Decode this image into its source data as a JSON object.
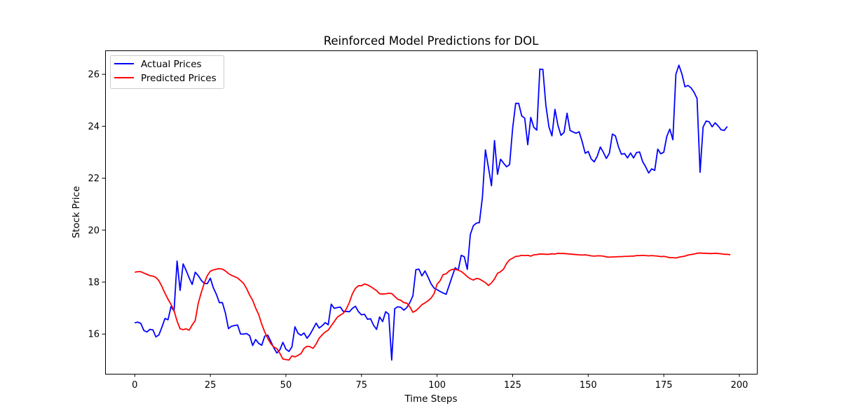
{
  "chart_data": {
    "type": "line",
    "title": "Reinforced Model Predictions for DOL",
    "xlabel": "Time Steps",
    "ylabel": "Stock Price",
    "xlim": [
      -9.8,
      205.8
    ],
    "ylim": [
      14.47,
      26.92
    ],
    "xticks": [
      0,
      25,
      50,
      75,
      100,
      125,
      150,
      175,
      200
    ],
    "yticks": [
      16,
      18,
      20,
      22,
      24,
      26
    ],
    "grid": false,
    "legend_position": "top-left",
    "series": [
      {
        "name": "Actual Prices",
        "color": "#0000ff",
        "values": [
          16.43,
          16.46,
          16.41,
          16.14,
          16.08,
          16.18,
          16.16,
          15.89,
          15.97,
          16.27,
          16.6,
          16.55,
          17.06,
          16.88,
          18.81,
          17.68,
          18.7,
          18.45,
          18.16,
          17.91,
          18.38,
          18.25,
          18.07,
          17.95,
          17.94,
          18.15,
          17.78,
          17.53,
          17.21,
          17.21,
          16.8,
          16.21,
          16.3,
          16.33,
          16.35,
          16.0,
          16.0,
          16.02,
          15.94,
          15.56,
          15.79,
          15.64,
          15.57,
          15.92,
          15.96,
          15.72,
          15.47,
          15.27,
          15.39,
          15.68,
          15.42,
          15.33,
          15.51,
          16.28,
          16.03,
          15.95,
          16.04,
          15.84,
          15.99,
          16.2,
          16.42,
          16.23,
          16.32,
          16.44,
          16.36,
          17.15,
          16.99,
          17.02,
          17.04,
          16.87,
          16.87,
          16.86,
          16.99,
          17.07,
          16.86,
          16.74,
          16.76,
          16.57,
          16.59,
          16.34,
          16.18,
          16.66,
          16.48,
          16.86,
          16.77,
          15.0,
          16.98,
          17.05,
          17.03,
          16.92,
          17.02,
          17.21,
          17.47,
          18.48,
          18.5,
          18.24,
          18.43,
          18.2,
          17.94,
          17.77,
          17.71,
          17.64,
          17.58,
          17.53,
          17.87,
          18.22,
          18.55,
          18.46,
          19.03,
          18.98,
          18.49,
          19.83,
          20.17,
          20.27,
          20.29,
          21.26,
          23.09,
          22.41,
          21.71,
          23.45,
          22.15,
          22.73,
          22.58,
          22.44,
          22.53,
          23.92,
          24.88,
          24.88,
          24.4,
          24.31,
          23.29,
          24.34,
          23.96,
          23.85,
          26.2,
          26.19,
          24.8,
          23.98,
          23.63,
          24.65,
          24.03,
          23.65,
          23.76,
          24.5,
          23.84,
          23.78,
          23.73,
          23.79,
          23.41,
          22.96,
          23.03,
          22.74,
          22.63,
          22.85,
          23.2,
          23.0,
          22.76,
          22.96,
          23.7,
          23.63,
          23.21,
          22.92,
          22.95,
          22.78,
          22.97,
          22.78,
          22.99,
          23.01,
          22.64,
          22.44,
          22.2,
          22.36,
          22.3,
          23.12,
          22.94,
          23.0,
          23.61,
          23.89,
          23.48,
          26.0,
          26.35,
          26.01,
          25.52,
          25.57,
          25.48,
          25.31,
          25.07,
          22.23,
          23.97,
          24.2,
          24.17,
          23.98,
          24.13,
          24.01,
          23.86,
          23.84,
          23.99
        ]
      },
      {
        "name": "Predicted Prices",
        "color": "#ff0000",
        "values": [
          18.38,
          18.4,
          18.4,
          18.35,
          18.3,
          18.25,
          18.23,
          18.18,
          18.05,
          17.83,
          17.57,
          17.34,
          17.14,
          16.9,
          16.5,
          16.2,
          16.17,
          16.2,
          16.15,
          16.35,
          16.52,
          17.18,
          17.6,
          17.96,
          18.25,
          18.42,
          18.47,
          18.5,
          18.52,
          18.5,
          18.43,
          18.33,
          18.26,
          18.21,
          18.16,
          18.06,
          17.95,
          17.75,
          17.5,
          17.3,
          17.0,
          16.75,
          16.38,
          16.08,
          15.83,
          15.63,
          15.5,
          15.44,
          15.26,
          15.04,
          15.02,
          15.0,
          15.16,
          15.12,
          15.18,
          15.25,
          15.45,
          15.53,
          15.51,
          15.45,
          15.62,
          15.84,
          15.97,
          16.08,
          16.15,
          16.32,
          16.48,
          16.65,
          16.73,
          16.8,
          16.97,
          17.22,
          17.55,
          17.76,
          17.86,
          17.86,
          17.93,
          17.89,
          17.83,
          17.75,
          17.67,
          17.55,
          17.54,
          17.55,
          17.57,
          17.56,
          17.45,
          17.34,
          17.3,
          17.21,
          17.19,
          17.05,
          16.84,
          16.9,
          17.01,
          17.13,
          17.2,
          17.28,
          17.38,
          17.55,
          17.92,
          18.05,
          18.29,
          18.32,
          18.43,
          18.49,
          18.49,
          18.46,
          18.41,
          18.32,
          18.21,
          18.13,
          18.08,
          18.14,
          18.12,
          18.05,
          17.98,
          17.87,
          17.97,
          18.12,
          18.34,
          18.4,
          18.5,
          18.72,
          18.86,
          18.92,
          18.99,
          19.0,
          19.03,
          19.02,
          19.03,
          19.0,
          19.05,
          19.06,
          19.08,
          19.08,
          19.07,
          19.07,
          19.09,
          19.08,
          19.11,
          19.1,
          19.1,
          19.09,
          19.08,
          19.07,
          19.06,
          19.05,
          19.04,
          19.05,
          19.03,
          19.01,
          19.0,
          19.01,
          19.01,
          19.0,
          18.97,
          18.96,
          18.97,
          18.97,
          18.98,
          18.98,
          18.99,
          18.99,
          19.0,
          19.0,
          19.02,
          19.02,
          19.03,
          19.02,
          19.01,
          19.02,
          19.01,
          19.0,
          18.98,
          18.99,
          18.97,
          18.94,
          18.94,
          18.93,
          18.96,
          18.98,
          19.0,
          19.04,
          19.06,
          19.08,
          19.11,
          19.12,
          19.11,
          19.11,
          19.1,
          19.1,
          19.11,
          19.1,
          19.09,
          19.07,
          19.07,
          19.05
        ]
      }
    ]
  }
}
